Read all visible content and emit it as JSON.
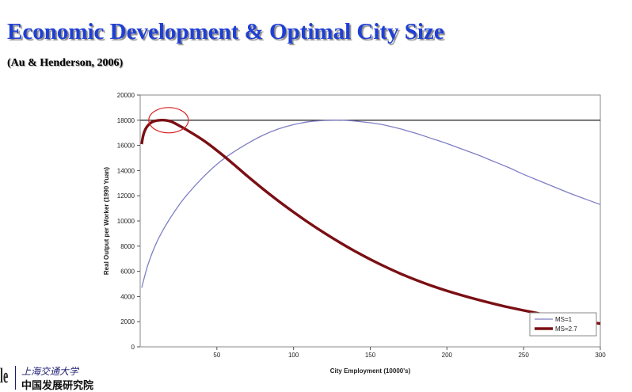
{
  "slide": {
    "title": "Economic Development & Optimal City Size",
    "subtitle": "(Au & Henderson, 2006)"
  },
  "logo": {
    "university": "上海交通大学",
    "institute": "中国发展研究院"
  },
  "colors": {
    "title": "#1f3fd4",
    "ms1_line": "#7f7fc4",
    "ms27_line": "#7a0f14",
    "reference_line": "#333333",
    "highlight_circle": "#d81e1e"
  },
  "chart_data": {
    "type": "line",
    "xlabel": "City Employment (10000's)",
    "ylabel": "Real Output per Worker (1990 Yuan)",
    "xlim": [
      0,
      300
    ],
    "ylim": [
      0,
      20000
    ],
    "x_ticks": [
      50,
      100,
      150,
      200,
      250,
      300
    ],
    "y_ticks": [
      0,
      2000,
      4000,
      6000,
      8000,
      10000,
      12000,
      14000,
      16000,
      18000,
      20000
    ],
    "grid": false,
    "legend_position": "bottom-right",
    "reference_line": {
      "y": 18000
    },
    "annotation": {
      "type": "circle",
      "x": 18,
      "y": 18000
    },
    "series": [
      {
        "name": "MS=1",
        "x": [
          1,
          5,
          10,
          15,
          20,
          25,
          30,
          40,
          50,
          60,
          70,
          80,
          90,
          100,
          110,
          120,
          128,
          135,
          150,
          160,
          170,
          180,
          190,
          200,
          210,
          220,
          230,
          240,
          250,
          260,
          270,
          280,
          290,
          300
        ],
        "y": [
          4700,
          6500,
          8100,
          9300,
          10300,
          11200,
          12000,
          13350,
          14500,
          15400,
          16150,
          16800,
          17300,
          17650,
          17880,
          17980,
          18000,
          17980,
          17800,
          17600,
          17300,
          16950,
          16550,
          16150,
          15700,
          15250,
          14750,
          14250,
          13700,
          13200,
          12700,
          12200,
          11750,
          11300
        ]
      },
      {
        "name": "MS=2.7",
        "x": [
          1,
          2,
          4,
          7,
          10,
          13,
          16,
          20,
          25,
          30,
          40,
          50,
          60,
          70,
          80,
          90,
          100,
          110,
          120,
          130,
          140,
          150,
          160,
          170,
          180,
          190,
          200,
          220,
          240,
          260,
          280,
          300
        ],
        "y": [
          16100,
          16800,
          17400,
          17800,
          17950,
          18000,
          18000,
          17900,
          17600,
          17250,
          16500,
          15600,
          14600,
          13550,
          12550,
          11600,
          10700,
          9850,
          9050,
          8300,
          7600,
          6950,
          6350,
          5800,
          5300,
          4850,
          4450,
          3750,
          3150,
          2650,
          2200,
          1850
        ]
      }
    ]
  }
}
